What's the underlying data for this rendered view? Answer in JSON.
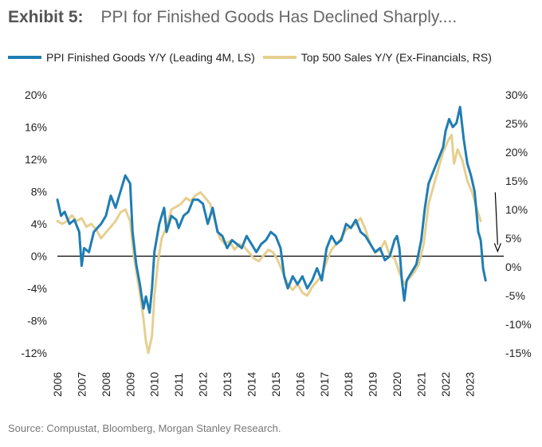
{
  "title": {
    "label": "Exhibit 5:",
    "text": "PPI for Finished Goods Has Declined Sharply...."
  },
  "source": "Source: Compustat, Bloomberg, Morgan Stanley Research.",
  "colors": {
    "ppi": "#1F7DB3",
    "sales": "#E6CF8F",
    "axis": "#000000"
  },
  "chart_data": {
    "type": "line",
    "title": "PPI for Finished Goods Has Declined Sharply....",
    "x_ticks": [
      "2006",
      "2007",
      "2008",
      "2009",
      "2010",
      "2011",
      "2012",
      "2013",
      "2014",
      "2015",
      "2016",
      "2017",
      "2018",
      "2019",
      "2020",
      "2021",
      "2022",
      "2023"
    ],
    "y_left": {
      "range": [
        -12,
        20
      ],
      "ticks": [
        20,
        16,
        12,
        8,
        4,
        0,
        -4,
        -8,
        -12
      ],
      "tick_labels": [
        "20%",
        "16%",
        "12%",
        "8%",
        "4%",
        "0%",
        "-4%",
        "-8%",
        "-12%"
      ]
    },
    "y_right": {
      "range": [
        -15,
        30
      ],
      "ticks": [
        30,
        25,
        20,
        15,
        10,
        5,
        0,
        -5,
        -10,
        -15
      ],
      "tick_labels": [
        "30%",
        "25%",
        "20%",
        "15%",
        "10%",
        "5%",
        "0%",
        "-5%",
        "-10%",
        "-15%"
      ]
    },
    "series": [
      {
        "name": "PPI Finished Goods Y/Y (Leading 4M, LS)",
        "axis": "left",
        "points": [
          [
            2006.0,
            7.0
          ],
          [
            2006.15,
            5.0
          ],
          [
            2006.3,
            5.5
          ],
          [
            2006.5,
            4.0
          ],
          [
            2006.7,
            4.5
          ],
          [
            2006.9,
            3.0
          ],
          [
            2007.0,
            -1.2
          ],
          [
            2007.1,
            1.0
          ],
          [
            2007.3,
            0.5
          ],
          [
            2007.5,
            3.0
          ],
          [
            2007.8,
            4.0
          ],
          [
            2008.0,
            5.0
          ],
          [
            2008.2,
            7.5
          ],
          [
            2008.4,
            6.0
          ],
          [
            2008.6,
            8.0
          ],
          [
            2008.8,
            10.0
          ],
          [
            2009.0,
            9.0
          ],
          [
            2009.1,
            3.0
          ],
          [
            2009.25,
            -1.0
          ],
          [
            2009.4,
            -3.5
          ],
          [
            2009.55,
            -6.5
          ],
          [
            2009.65,
            -5.0
          ],
          [
            2009.8,
            -7.0
          ],
          [
            2009.9,
            -4.0
          ],
          [
            2010.0,
            0.5
          ],
          [
            2010.2,
            4.0
          ],
          [
            2010.4,
            6.0
          ],
          [
            2010.5,
            3.0
          ],
          [
            2010.7,
            5.0
          ],
          [
            2010.9,
            4.5
          ],
          [
            2011.0,
            3.5
          ],
          [
            2011.2,
            5.0
          ],
          [
            2011.4,
            5.5
          ],
          [
            2011.6,
            7.0
          ],
          [
            2011.8,
            7.0
          ],
          [
            2012.0,
            6.5
          ],
          [
            2012.2,
            4.0
          ],
          [
            2012.4,
            6.0
          ],
          [
            2012.6,
            3.0
          ],
          [
            2012.8,
            2.5
          ],
          [
            2013.0,
            1.0
          ],
          [
            2013.2,
            2.0
          ],
          [
            2013.4,
            1.5
          ],
          [
            2013.6,
            1.0
          ],
          [
            2013.8,
            2.5
          ],
          [
            2014.0,
            1.5
          ],
          [
            2014.2,
            0.5
          ],
          [
            2014.4,
            1.5
          ],
          [
            2014.6,
            2.0
          ],
          [
            2014.8,
            3.0
          ],
          [
            2015.0,
            2.5
          ],
          [
            2015.2,
            1.0
          ],
          [
            2015.35,
            -2.5
          ],
          [
            2015.5,
            -4.0
          ],
          [
            2015.7,
            -2.5
          ],
          [
            2015.9,
            -3.5
          ],
          [
            2016.1,
            -2.5
          ],
          [
            2016.3,
            -4.0
          ],
          [
            2016.5,
            -3.0
          ],
          [
            2016.7,
            -1.5
          ],
          [
            2016.9,
            -3.0
          ],
          [
            2017.1,
            1.0
          ],
          [
            2017.3,
            2.5
          ],
          [
            2017.5,
            1.5
          ],
          [
            2017.7,
            2.0
          ],
          [
            2017.9,
            4.0
          ],
          [
            2018.1,
            3.5
          ],
          [
            2018.3,
            4.5
          ],
          [
            2018.5,
            3.0
          ],
          [
            2018.7,
            2.5
          ],
          [
            2018.9,
            1.5
          ],
          [
            2019.1,
            0.5
          ],
          [
            2019.3,
            1.0
          ],
          [
            2019.5,
            -0.5
          ],
          [
            2019.7,
            0.0
          ],
          [
            2019.9,
            2.0
          ],
          [
            2020.0,
            2.5
          ],
          [
            2020.1,
            1.0
          ],
          [
            2020.2,
            -3.0
          ],
          [
            2020.3,
            -5.5
          ],
          [
            2020.4,
            -3.0
          ],
          [
            2020.6,
            -2.0
          ],
          [
            2020.8,
            -1.0
          ],
          [
            2021.0,
            2.0
          ],
          [
            2021.15,
            6.0
          ],
          [
            2021.3,
            9.0
          ],
          [
            2021.5,
            10.5
          ],
          [
            2021.7,
            12.0
          ],
          [
            2021.9,
            13.5
          ],
          [
            2022.0,
            15.5
          ],
          [
            2022.15,
            17.0
          ],
          [
            2022.3,
            16.0
          ],
          [
            2022.45,
            16.5
          ],
          [
            2022.6,
            18.5
          ],
          [
            2022.75,
            14.5
          ],
          [
            2022.9,
            11.5
          ],
          [
            2023.05,
            10.0
          ],
          [
            2023.2,
            8.0
          ],
          [
            2023.35,
            3.0
          ],
          [
            2023.45,
            2.0
          ],
          [
            2023.55,
            -1.5
          ],
          [
            2023.65,
            -3.0
          ]
        ]
      },
      {
        "name": "Top 500 Sales Y/Y (Ex-Financials, RS)",
        "axis": "right",
        "points": [
          [
            2006.0,
            8.0
          ],
          [
            2006.2,
            7.5
          ],
          [
            2006.4,
            8.0
          ],
          [
            2006.6,
            9.0
          ],
          [
            2006.8,
            8.0
          ],
          [
            2007.0,
            8.5
          ],
          [
            2007.2,
            7.0
          ],
          [
            2007.4,
            7.5
          ],
          [
            2007.6,
            6.5
          ],
          [
            2007.8,
            5.0
          ],
          [
            2008.0,
            6.0
          ],
          [
            2008.2,
            7.0
          ],
          [
            2008.4,
            8.0
          ],
          [
            2008.6,
            9.5
          ],
          [
            2008.8,
            10.0
          ],
          [
            2009.0,
            8.0
          ],
          [
            2009.15,
            2.0
          ],
          [
            2009.3,
            -2.0
          ],
          [
            2009.45,
            -6.0
          ],
          [
            2009.55,
            -9.0
          ],
          [
            2009.65,
            -13.0
          ],
          [
            2009.75,
            -15.0
          ],
          [
            2009.9,
            -12.0
          ],
          [
            2010.0,
            -5.0
          ],
          [
            2010.15,
            1.0
          ],
          [
            2010.3,
            5.0
          ],
          [
            2010.5,
            7.0
          ],
          [
            2010.7,
            10.0
          ],
          [
            2010.9,
            10.5
          ],
          [
            2011.1,
            11.0
          ],
          [
            2011.3,
            12.0
          ],
          [
            2011.5,
            11.5
          ],
          [
            2011.7,
            12.5
          ],
          [
            2011.9,
            13.0
          ],
          [
            2012.1,
            12.0
          ],
          [
            2012.3,
            11.0
          ],
          [
            2012.5,
            8.0
          ],
          [
            2012.7,
            5.0
          ],
          [
            2012.9,
            4.0
          ],
          [
            2013.1,
            4.5
          ],
          [
            2013.3,
            3.0
          ],
          [
            2013.5,
            4.0
          ],
          [
            2013.7,
            3.5
          ],
          [
            2013.9,
            2.5
          ],
          [
            2014.1,
            1.5
          ],
          [
            2014.3,
            1.0
          ],
          [
            2014.5,
            2.0
          ],
          [
            2014.7,
            3.0
          ],
          [
            2014.9,
            2.5
          ],
          [
            2015.1,
            1.0
          ],
          [
            2015.3,
            -1.0
          ],
          [
            2015.5,
            -3.0
          ],
          [
            2015.7,
            -4.0
          ],
          [
            2015.9,
            -3.0
          ],
          [
            2016.1,
            -4.5
          ],
          [
            2016.3,
            -5.0
          ],
          [
            2016.5,
            -3.5
          ],
          [
            2016.7,
            -2.5
          ],
          [
            2016.9,
            -1.5
          ],
          [
            2017.1,
            1.0
          ],
          [
            2017.3,
            3.0
          ],
          [
            2017.5,
            4.0
          ],
          [
            2017.7,
            5.0
          ],
          [
            2017.9,
            6.5
          ],
          [
            2018.1,
            7.0
          ],
          [
            2018.3,
            7.5
          ],
          [
            2018.5,
            8.5
          ],
          [
            2018.7,
            6.5
          ],
          [
            2018.9,
            4.0
          ],
          [
            2019.1,
            2.5
          ],
          [
            2019.3,
            3.0
          ],
          [
            2019.5,
            4.5
          ],
          [
            2019.7,
            2.0
          ],
          [
            2019.9,
            1.5
          ],
          [
            2020.1,
            -1.0
          ],
          [
            2020.3,
            -3.0
          ],
          [
            2020.5,
            -2.0
          ],
          [
            2020.7,
            -1.0
          ],
          [
            2020.9,
            0.5
          ],
          [
            2021.1,
            4.0
          ],
          [
            2021.3,
            11.0
          ],
          [
            2021.5,
            14.0
          ],
          [
            2021.7,
            17.0
          ],
          [
            2021.9,
            20.0
          ],
          [
            2022.1,
            22.0
          ],
          [
            2022.25,
            23.0
          ],
          [
            2022.35,
            18.0
          ],
          [
            2022.5,
            20.5
          ],
          [
            2022.7,
            18.5
          ],
          [
            2022.9,
            15.0
          ],
          [
            2023.1,
            13.0
          ],
          [
            2023.3,
            10.0
          ],
          [
            2023.45,
            8.0
          ]
        ]
      }
    ],
    "annotation": {
      "type": "arrow",
      "description": "downward arrow",
      "from": [
        2024.05,
        13.0
      ],
      "to": [
        2024.05,
        3.0
      ],
      "axis": "right"
    }
  }
}
